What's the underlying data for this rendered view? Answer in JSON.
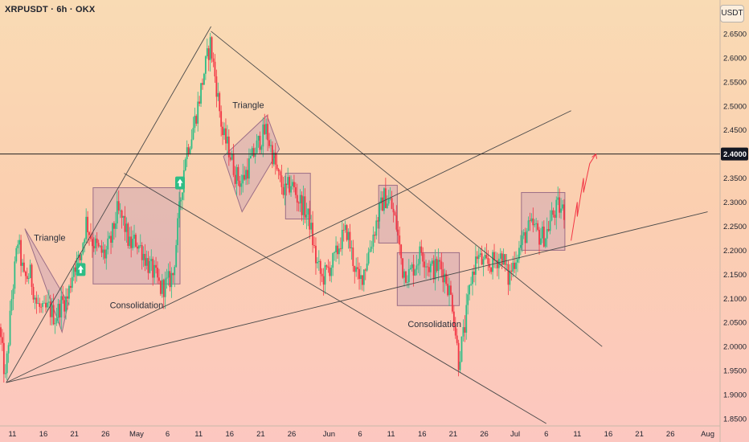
{
  "header": {
    "title": "XRPUSDT · 6h · OKX",
    "unit": "USDT"
  },
  "colors": {
    "up": "#2ebd85",
    "down": "#f23645",
    "line": "#4a4a4a",
    "box_fill": "#c8a0b4",
    "box_stroke": "#9c6e86",
    "arrow_bg": "#2ebd85",
    "current_tag": "#131722"
  },
  "icons": {
    "breakout": "up-arrow-icon"
  },
  "chart_data": {
    "type": "candlestick",
    "symbol": "XRPUSDT",
    "timeframe": "6h",
    "exchange": "OKX",
    "ylim": [
      1.835,
      2.72
    ],
    "y_ticks": [
      "2.6500",
      "2.6000",
      "2.5500",
      "2.5000",
      "2.4500",
      "2.3500",
      "2.3000",
      "2.2500",
      "2.2000",
      "2.1500",
      "2.1000",
      "2.0500",
      "2.0000",
      "1.9500",
      "1.9000",
      "1.8500"
    ],
    "x_ticks": [
      {
        "label": "11",
        "date": "2025-04-11"
      },
      {
        "label": "16",
        "date": "2025-04-16"
      },
      {
        "label": "21",
        "date": "2025-04-21"
      },
      {
        "label": "26",
        "date": "2025-04-26"
      },
      {
        "label": "May",
        "date": "2025-05-01"
      },
      {
        "label": "6",
        "date": "2025-05-06"
      },
      {
        "label": "11",
        "date": "2025-05-11"
      },
      {
        "label": "16",
        "date": "2025-05-16"
      },
      {
        "label": "21",
        "date": "2025-05-21"
      },
      {
        "label": "26",
        "date": "2025-05-26"
      },
      {
        "label": "Jun",
        "date": "2025-06-01"
      },
      {
        "label": "6",
        "date": "2025-06-06"
      },
      {
        "label": "11",
        "date": "2025-06-11"
      },
      {
        "label": "16",
        "date": "2025-06-16"
      },
      {
        "label": "21",
        "date": "2025-06-21"
      },
      {
        "label": "26",
        "date": "2025-06-26"
      },
      {
        "label": "Jul",
        "date": "2025-07-01"
      },
      {
        "label": "6",
        "date": "2025-07-06"
      },
      {
        "label": "11",
        "date": "2025-07-11"
      },
      {
        "label": "16",
        "date": "2025-07-16"
      },
      {
        "label": "21",
        "date": "2025-07-21"
      },
      {
        "label": "26",
        "date": "2025-07-26"
      },
      {
        "label": "Aug",
        "date": "2025-08-01"
      }
    ],
    "current_price": "2.4000",
    "price_path": [
      [
        "2025-04-09",
        2.04
      ],
      [
        "2025-04-10",
        1.93
      ],
      [
        "2025-04-11",
        2.1
      ],
      [
        "2025-04-12",
        2.22
      ],
      [
        "2025-04-13",
        2.14
      ],
      [
        "2025-04-14",
        2.15
      ],
      [
        "2025-04-15",
        2.09
      ],
      [
        "2025-04-16",
        2.07
      ],
      [
        "2025-04-17",
        2.08
      ],
      [
        "2025-04-18",
        2.06
      ],
      [
        "2025-04-19",
        2.09
      ],
      [
        "2025-04-20",
        2.1
      ],
      [
        "2025-04-21",
        2.17
      ],
      [
        "2025-04-22",
        2.18
      ],
      [
        "2025-04-23",
        2.26
      ],
      [
        "2025-04-24",
        2.22
      ],
      [
        "2025-04-25",
        2.2
      ],
      [
        "2025-04-26",
        2.19
      ],
      [
        "2025-04-27",
        2.22
      ],
      [
        "2025-04-28",
        2.28
      ],
      [
        "2025-04-29",
        2.26
      ],
      [
        "2025-04-30",
        2.21
      ],
      [
        "2025-05-01",
        2.22
      ],
      [
        "2025-05-02",
        2.2
      ],
      [
        "2025-05-03",
        2.17
      ],
      [
        "2025-05-04",
        2.15
      ],
      [
        "2025-05-05",
        2.12
      ],
      [
        "2025-05-06",
        2.13
      ],
      [
        "2025-05-07",
        2.15
      ],
      [
        "2025-05-08",
        2.28
      ],
      [
        "2025-05-09",
        2.4
      ],
      [
        "2025-05-10",
        2.44
      ],
      [
        "2025-05-11",
        2.5
      ],
      [
        "2025-05-12",
        2.57
      ],
      [
        "2025-05-13",
        2.63
      ],
      [
        "2025-05-14",
        2.54
      ],
      [
        "2025-05-15",
        2.44
      ],
      [
        "2025-05-16",
        2.41
      ],
      [
        "2025-05-17",
        2.36
      ],
      [
        "2025-05-18",
        2.34
      ],
      [
        "2025-05-19",
        2.37
      ],
      [
        "2025-05-20",
        2.4
      ],
      [
        "2025-05-21",
        2.43
      ],
      [
        "2025-05-22",
        2.45
      ],
      [
        "2025-05-23",
        2.4
      ],
      [
        "2025-05-24",
        2.35
      ],
      [
        "2025-05-25",
        2.32
      ],
      [
        "2025-05-26",
        2.34
      ],
      [
        "2025-05-27",
        2.31
      ],
      [
        "2025-05-28",
        2.29
      ],
      [
        "2025-05-29",
        2.26
      ],
      [
        "2025-05-30",
        2.18
      ],
      [
        "2025-05-31",
        2.14
      ],
      [
        "2025-06-01",
        2.16
      ],
      [
        "2025-06-02",
        2.18
      ],
      [
        "2025-06-03",
        2.22
      ],
      [
        "2025-06-04",
        2.24
      ],
      [
        "2025-06-05",
        2.18
      ],
      [
        "2025-06-06",
        2.13
      ],
      [
        "2025-06-07",
        2.17
      ],
      [
        "2025-06-08",
        2.22
      ],
      [
        "2025-06-09",
        2.27
      ],
      [
        "2025-06-10",
        2.31
      ],
      [
        "2025-06-11",
        2.3
      ],
      [
        "2025-06-12",
        2.25
      ],
      [
        "2025-06-13",
        2.16
      ],
      [
        "2025-06-14",
        2.15
      ],
      [
        "2025-06-15",
        2.17
      ],
      [
        "2025-06-16",
        2.2
      ],
      [
        "2025-06-17",
        2.17
      ],
      [
        "2025-06-18",
        2.16
      ],
      [
        "2025-06-19",
        2.17
      ],
      [
        "2025-06-20",
        2.14
      ],
      [
        "2025-06-21",
        2.09
      ],
      [
        "2025-06-22",
        1.97
      ],
      [
        "2025-06-23",
        2.04
      ],
      [
        "2025-06-24",
        2.14
      ],
      [
        "2025-06-25",
        2.19
      ],
      [
        "2025-06-26",
        2.17
      ],
      [
        "2025-06-27",
        2.17
      ],
      [
        "2025-06-28",
        2.18
      ],
      [
        "2025-06-29",
        2.19
      ],
      [
        "2025-06-30",
        2.14
      ],
      [
        "2025-07-01",
        2.18
      ],
      [
        "2025-07-02",
        2.21
      ],
      [
        "2025-07-03",
        2.24
      ],
      [
        "2025-07-04",
        2.25
      ],
      [
        "2025-07-05",
        2.23
      ],
      [
        "2025-07-06",
        2.23
      ],
      [
        "2025-07-07",
        2.27
      ],
      [
        "2025-07-08",
        2.29
      ],
      [
        "2025-07-09",
        2.28
      ]
    ],
    "trendlines": [
      {
        "from": [
          "2025-04-10",
          1.925
        ],
        "to": [
          "2025-05-13",
          2.665
        ]
      },
      {
        "from": [
          "2025-05-13",
          2.655
        ],
        "to": [
          "2025-07-15",
          2.0
        ]
      },
      {
        "from": [
          "2025-04-10",
          1.925
        ],
        "to": [
          "2025-07-10",
          2.49
        ]
      },
      {
        "from": [
          "2025-04-10",
          1.925
        ],
        "to": [
          "2025-08-01",
          2.28
        ]
      },
      {
        "from": [
          "2025-04-29",
          2.36
        ],
        "to": [
          "2025-07-06",
          1.84
        ]
      }
    ],
    "horizontal_levels": [
      2.4
    ],
    "projection": [
      [
        "2025-07-10",
        2.22
      ],
      [
        "2025-07-11",
        2.3
      ],
      [
        "2025-07-11",
        2.27
      ],
      [
        "2025-07-12",
        2.35
      ],
      [
        "2025-07-12",
        2.32
      ],
      [
        "2025-07-13",
        2.38
      ],
      [
        "2025-07-14",
        2.4
      ]
    ],
    "annotations": [
      {
        "type": "triangle",
        "label": "Triangle",
        "points": [
          [
            "2025-04-13",
            2.245
          ],
          [
            "2025-04-20",
            2.09
          ],
          [
            "2025-04-19",
            2.03
          ]
        ],
        "label_at": [
          "2025-04-17",
          2.22
        ]
      },
      {
        "type": "box",
        "label": "Consolidation",
        "from": [
          "2025-04-24",
          2.33
        ],
        "to": [
          "2025-05-08",
          2.13
        ],
        "label_at": [
          "2025-05-01",
          2.08
        ]
      },
      {
        "type": "diamond",
        "label": "Triangle",
        "points": [
          [
            "2025-05-15",
            2.395
          ],
          [
            "2025-05-22",
            2.48
          ],
          [
            "2025-05-24",
            2.41
          ],
          [
            "2025-05-18",
            2.28
          ]
        ],
        "label_at": [
          "2025-05-19",
          2.495
        ]
      },
      {
        "type": "box",
        "from": [
          "2025-05-25",
          2.36
        ],
        "to": [
          "2025-05-29",
          2.265
        ]
      },
      {
        "type": "box",
        "from": [
          "2025-06-09",
          2.335
        ],
        "to": [
          "2025-06-12",
          2.215
        ]
      },
      {
        "type": "box",
        "label": "Consolidation",
        "from": [
          "2025-06-12",
          2.195
        ],
        "to": [
          "2025-06-22",
          2.085
        ],
        "label_at": [
          "2025-06-18",
          2.04
        ]
      },
      {
        "type": "box",
        "from": [
          "2025-07-02",
          2.32
        ],
        "to": [
          "2025-07-09",
          2.2
        ]
      }
    ],
    "breakout_markers": [
      [
        "2025-04-22",
        2.16
      ],
      [
        "2025-05-08",
        2.34
      ]
    ]
  }
}
